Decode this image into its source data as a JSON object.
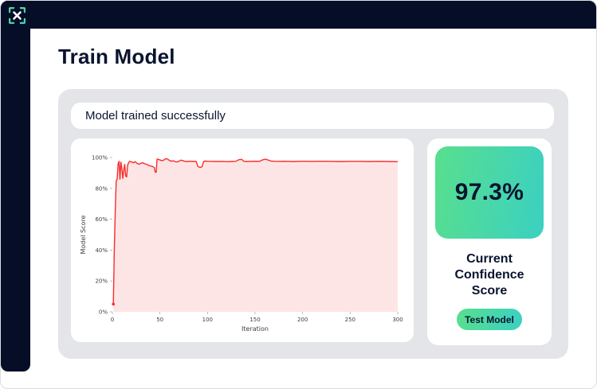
{
  "app": {
    "logo_name": "scan-x-logo",
    "colors": {
      "navy": "#050e26",
      "gradient_start": "#58df8d",
      "gradient_end": "#3bd0c2",
      "card_gray": "#e4e5e9",
      "line_red": "#f82c2c",
      "fill_pink": "rgba(248,44,44,0.12)"
    }
  },
  "header": {
    "title": "Train Model"
  },
  "status": {
    "message": "Model trained successfully"
  },
  "confidence": {
    "score": "97.3%",
    "label": "Current Confidence Score",
    "button_label": "Test Model"
  },
  "chart_data": {
    "type": "area",
    "title": "",
    "xlabel": "Iteration",
    "ylabel": "Model Score",
    "xlim": [
      0,
      300
    ],
    "ylim": [
      0,
      100
    ],
    "x_ticks": [
      0,
      50,
      100,
      150,
      200,
      250,
      300
    ],
    "y_ticks": [
      0,
      20,
      40,
      60,
      80,
      100
    ],
    "y_tick_labels": [
      "0%",
      "20%",
      "40%",
      "60%",
      "80%",
      "100%"
    ],
    "grid": false,
    "legend": "none",
    "line_color": "#f82c2c",
    "fill_color": "rgba(248,44,44,0.12)",
    "points": [
      [
        1,
        5
      ],
      [
        2,
        40
      ],
      [
        3,
        65
      ],
      [
        4,
        85
      ],
      [
        5,
        86
      ],
      [
        6,
        96
      ],
      [
        7,
        97.5
      ],
      [
        8,
        86
      ],
      [
        9,
        97
      ],
      [
        10,
        93
      ],
      [
        11,
        86.5
      ],
      [
        12,
        92
      ],
      [
        13,
        95.5
      ],
      [
        14,
        88
      ],
      [
        15,
        87.5
      ],
      [
        16,
        95
      ],
      [
        17,
        96.5
      ],
      [
        18,
        97.5
      ],
      [
        20,
        97.2
      ],
      [
        22,
        96.6
      ],
      [
        24,
        97.3
      ],
      [
        26,
        96.2
      ],
      [
        28,
        95.6
      ],
      [
        30,
        96.3
      ],
      [
        32,
        96.6
      ],
      [
        34,
        95.9
      ],
      [
        36,
        95.6
      ],
      [
        38,
        94.9
      ],
      [
        40,
        94.6
      ],
      [
        42,
        94.2
      ],
      [
        44,
        93.6
      ],
      [
        45,
        90.6
      ],
      [
        46,
        90.4
      ],
      [
        47,
        99
      ],
      [
        48,
        98.8
      ],
      [
        50,
        98.4
      ],
      [
        52,
        98
      ],
      [
        54,
        98.3
      ],
      [
        56,
        99.3
      ],
      [
        58,
        99
      ],
      [
        60,
        98.1
      ],
      [
        62,
        97.6
      ],
      [
        64,
        97.9
      ],
      [
        66,
        97.3
      ],
      [
        68,
        97.1
      ],
      [
        70,
        97.6
      ],
      [
        72,
        98.3
      ],
      [
        74,
        98
      ],
      [
        76,
        97.6
      ],
      [
        78,
        97.4
      ],
      [
        80,
        97.6
      ],
      [
        82,
        97.5
      ],
      [
        84,
        97.6
      ],
      [
        86,
        97.4
      ],
      [
        88,
        97.5
      ],
      [
        90,
        94.1
      ],
      [
        92,
        93.6
      ],
      [
        94,
        93.9
      ],
      [
        96,
        97.5
      ],
      [
        98,
        97.7
      ],
      [
        100,
        97.6
      ],
      [
        105,
        97.5
      ],
      [
        110,
        97.4
      ],
      [
        115,
        97.5
      ],
      [
        120,
        97.3
      ],
      [
        125,
        97.4
      ],
      [
        130,
        97.6
      ],
      [
        133,
        98.6
      ],
      [
        136,
        98.8
      ],
      [
        138,
        97.6
      ],
      [
        140,
        97.4
      ],
      [
        145,
        97.5
      ],
      [
        150,
        97.6
      ],
      [
        155,
        97.5
      ],
      [
        158,
        98.5
      ],
      [
        161,
        98.9
      ],
      [
        164,
        98.3
      ],
      [
        167,
        97.7
      ],
      [
        170,
        97.6
      ],
      [
        175,
        97.5
      ],
      [
        180,
        97.6
      ],
      [
        185,
        97.5
      ],
      [
        190,
        97.4
      ],
      [
        195,
        97.5
      ],
      [
        200,
        97.6
      ],
      [
        210,
        97.5
      ],
      [
        220,
        97.6
      ],
      [
        230,
        97.5
      ],
      [
        240,
        97.4
      ],
      [
        250,
        97.5
      ],
      [
        260,
        97.5
      ],
      [
        270,
        97.4
      ],
      [
        280,
        97.5
      ],
      [
        290,
        97.4
      ],
      [
        300,
        97.3
      ]
    ]
  }
}
